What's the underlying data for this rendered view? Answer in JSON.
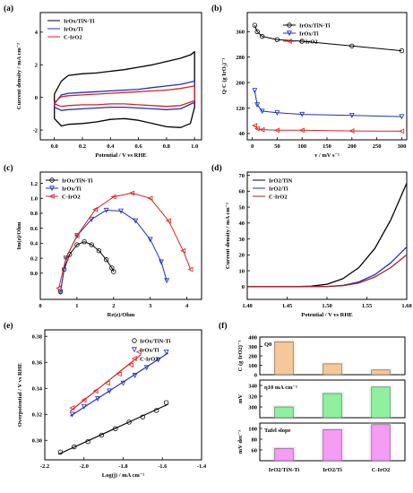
{
  "chart_data": [
    {
      "panel": "(a)",
      "type": "line",
      "subtype": "cyclic-voltammetry",
      "xlabel": "Potential / V vs RHE",
      "ylabel": "Current density / mA cm⁻²",
      "xlim": [
        -0.1,
        1.05
      ],
      "ylim": [
        -2.6,
        5.2
      ],
      "xticks": [
        0.0,
        0.2,
        0.4,
        0.6,
        0.8,
        1.0
      ],
      "yticks": [
        -2,
        0,
        2,
        4
      ],
      "legend_position": "top-left",
      "series": [
        {
          "name": "IrOx/TiN-Ti",
          "color": "#000000",
          "upper": {
            "x": [
              0.0,
              0.05,
              0.1,
              0.2,
              0.3,
              0.4,
              0.5,
              0.6,
              0.7,
              0.8,
              0.9,
              0.97,
              1.0
            ],
            "y": [
              0.2,
              1.0,
              1.35,
              1.45,
              1.5,
              1.6,
              1.7,
              1.85,
              2.0,
              2.2,
              2.4,
              2.6,
              2.8
            ]
          },
          "lower": {
            "x": [
              0.0,
              0.05,
              0.1,
              0.2,
              0.3,
              0.4,
              0.5,
              0.6,
              0.7,
              0.8,
              0.9,
              0.97,
              1.0
            ],
            "y": [
              -1.3,
              -1.75,
              -1.65,
              -1.6,
              -1.5,
              -1.35,
              -1.3,
              -1.4,
              -1.6,
              -1.8,
              -1.85,
              -1.6,
              -0.6
            ]
          }
        },
        {
          "name": "IrOx/Ti",
          "color": "#1f2fbf",
          "upper": {
            "x": [
              0.0,
              0.05,
              0.1,
              0.2,
              0.3,
              0.4,
              0.5,
              0.6,
              0.7,
              0.8,
              0.9,
              1.0
            ],
            "y": [
              -0.4,
              0.15,
              0.25,
              0.3,
              0.35,
              0.4,
              0.45,
              0.5,
              0.6,
              0.7,
              0.8,
              1.0
            ]
          },
          "lower": {
            "x": [
              0.0,
              0.05,
              0.1,
              0.2,
              0.3,
              0.4,
              0.5,
              0.6,
              0.7,
              0.8,
              0.9,
              1.0
            ],
            "y": [
              -0.6,
              -0.8,
              -0.75,
              -0.7,
              -0.65,
              -0.6,
              -0.6,
              -0.65,
              -0.7,
              -0.75,
              -0.7,
              -0.3
            ]
          }
        },
        {
          "name": "C-IrO2",
          "color": "#e02020",
          "upper": {
            "x": [
              0.0,
              0.05,
              0.1,
              0.2,
              0.3,
              0.4,
              0.5,
              0.6,
              0.7,
              0.8,
              0.9,
              1.0
            ],
            "y": [
              -0.3,
              0.05,
              0.1,
              0.15,
              0.2,
              0.25,
              0.3,
              0.35,
              0.4,
              0.45,
              0.55,
              0.7
            ]
          },
          "lower": {
            "x": [
              0.0,
              0.05,
              0.1,
              0.2,
              0.3,
              0.4,
              0.5,
              0.6,
              0.7,
              0.8,
              0.9,
              1.0
            ],
            "y": [
              -0.4,
              -0.55,
              -0.5,
              -0.45,
              -0.45,
              -0.4,
              -0.4,
              -0.45,
              -0.5,
              -0.55,
              -0.5,
              -0.2
            ]
          }
        }
      ]
    },
    {
      "panel": "(b)",
      "type": "line",
      "xlabel": "v / mV s⁻¹",
      "ylabel": "Q·C (g IrO₂)⁻¹",
      "xlim": [
        -10,
        310
      ],
      "ylim": [
        20,
        420
      ],
      "xticks": [
        0,
        50,
        100,
        150,
        200,
        250,
        300
      ],
      "yticks": [
        40,
        120,
        200,
        280,
        360
      ],
      "legend_position": "top-right",
      "series": [
        {
          "name": "IrOx/TiN-Ti",
          "color": "#000000",
          "marker": "circle",
          "x": [
            5,
            10,
            20,
            50,
            100,
            200,
            300
          ],
          "y": [
            380,
            360,
            345,
            335,
            330,
            315,
            300
          ]
        },
        {
          "name": "IrOx/Ti",
          "color": "#1f2fbf",
          "marker": "triangle-down",
          "x": [
            5,
            10,
            20,
            50,
            100,
            200,
            300
          ],
          "y": [
            175,
            130,
            110,
            105,
            100,
            97,
            93
          ]
        },
        {
          "name": "C-IrO2",
          "color": "#e02020",
          "marker": "triangle-left",
          "x": [
            5,
            10,
            20,
            50,
            100,
            200,
            300
          ],
          "y": [
            65,
            55,
            52,
            50,
            50,
            48,
            47
          ]
        }
      ]
    },
    {
      "panel": "(c)",
      "type": "scatter",
      "subtype": "nyquist",
      "xlabel": "Re(z)/Ohm",
      "ylabel": "Im(z)/Ohm",
      "xlim": [
        0,
        4.4
      ],
      "ylim": [
        -0.35,
        1.35
      ],
      "xticks": [
        0,
        1,
        2,
        3,
        4
      ],
      "yticks": [
        0.0,
        0.2,
        0.4,
        0.6,
        0.8,
        1.0,
        1.2
      ],
      "legend_position": "top-left",
      "series": [
        {
          "name": "IrOx/TiN-Ti",
          "color": "#000000",
          "marker": "circle",
          "x": [
            0.55,
            0.65,
            0.8,
            1.0,
            1.2,
            1.4,
            1.6,
            1.8,
            1.95,
            2.0
          ],
          "y": [
            -0.25,
            0.05,
            0.25,
            0.38,
            0.42,
            0.38,
            0.3,
            0.18,
            0.07,
            0.02
          ]
        },
        {
          "name": "IrOx/Ti",
          "color": "#1f2fbf",
          "marker": "triangle-down",
          "x": [
            0.55,
            0.7,
            1.0,
            1.4,
            1.8,
            2.2,
            2.6,
            3.0,
            3.3,
            3.45
          ],
          "y": [
            -0.25,
            0.2,
            0.5,
            0.72,
            0.84,
            0.83,
            0.7,
            0.45,
            0.15,
            -0.1
          ]
        },
        {
          "name": "C-IrO2",
          "color": "#e02020",
          "marker": "triangle-left",
          "x": [
            0.5,
            0.7,
            1.0,
            1.5,
            2.0,
            2.5,
            3.0,
            3.5,
            3.9,
            4.1
          ],
          "y": [
            -0.2,
            0.2,
            0.5,
            0.85,
            1.02,
            1.07,
            1.0,
            0.7,
            0.3,
            0.05
          ]
        }
      ]
    },
    {
      "panel": "(d)",
      "type": "line",
      "subtype": "polarization",
      "xlabel": "Potential / V vs RHE",
      "ylabel": "Current density / mA cm⁻²",
      "xlim": [
        1.4,
        1.6
      ],
      "ylim": [
        -8,
        72
      ],
      "xticks": [
        1.4,
        1.45,
        1.5,
        1.55,
        1.6
      ],
      "yticks": [
        0,
        10,
        20,
        30,
        40,
        50,
        60,
        70
      ],
      "legend_position": "top-left",
      "series": [
        {
          "name": "IrO2/TiN",
          "color": "#000000",
          "x": [
            1.4,
            1.46,
            1.48,
            1.5,
            1.52,
            1.54,
            1.56,
            1.58,
            1.6
          ],
          "y": [
            0,
            0,
            0.3,
            1.5,
            5,
            12,
            24,
            42,
            65
          ]
        },
        {
          "name": "IrO2/Ti",
          "color": "#1f2fbf",
          "x": [
            1.4,
            1.5,
            1.52,
            1.54,
            1.56,
            1.58,
            1.6
          ],
          "y": [
            0,
            0.1,
            0.8,
            3,
            7.5,
            15,
            25
          ]
        },
        {
          "name": "C-IrO2",
          "color": "#b02020",
          "x": [
            1.4,
            1.5,
            1.52,
            1.54,
            1.56,
            1.58,
            1.6
          ],
          "y": [
            0,
            0.1,
            0.6,
            2.3,
            6,
            12,
            20
          ]
        }
      ]
    },
    {
      "panel": "(e)",
      "type": "scatter",
      "subtype": "tafel",
      "xlabel": "Log(j) / mA cm⁻²",
      "ylabel": "Overpotential / V vs RHE",
      "xlim": [
        -2.2,
        -1.4
      ],
      "ylim": [
        0.285,
        0.385
      ],
      "xticks": [
        -2.2,
        -2.0,
        -1.8,
        -1.6,
        -1.4
      ],
      "yticks": [
        0.3,
        0.32,
        0.34,
        0.36,
        0.38
      ],
      "legend_position": "top-right",
      "series": [
        {
          "name": "IrOx/TiN-Ti",
          "color": "#000000",
          "marker": "circle",
          "x": [
            -2.12,
            -2.05,
            -1.98,
            -1.91,
            -1.84,
            -1.77,
            -1.7,
            -1.63,
            -1.58
          ],
          "y": [
            0.291,
            0.295,
            0.299,
            0.304,
            0.309,
            0.314,
            0.318,
            0.323,
            0.329
          ]
        },
        {
          "name": "IrOx/Ti",
          "color": "#1f2fbf",
          "marker": "triangle-down",
          "x": [
            -2.06,
            -2.0,
            -1.93,
            -1.87,
            -1.8,
            -1.74,
            -1.68,
            -1.62,
            -1.58
          ],
          "y": [
            0.32,
            0.326,
            0.332,
            0.338,
            0.344,
            0.35,
            0.356,
            0.362,
            0.368
          ]
        },
        {
          "name": "C-IrO2",
          "color": "#e02020",
          "marker": "triangle-left",
          "x": [
            -2.06,
            -2.0,
            -1.94,
            -1.88,
            -1.82,
            -1.76,
            -1.72
          ],
          "y": [
            0.325,
            0.331,
            0.338,
            0.344,
            0.351,
            0.358,
            0.368
          ]
        }
      ]
    },
    {
      "panel": "(f)",
      "type": "bar",
      "categories": [
        "IrO2/TiN-Ti",
        "IrO2/Ti",
        "C-IrO2"
      ],
      "bar_colors": [
        "#f5c79a",
        "#8ff0a0",
        "#f59cf5"
      ],
      "subplots": [
        {
          "name": "Q0",
          "ylabel": "C (g IrO2)⁻¹",
          "ylim": [
            0,
            400
          ],
          "yticks": [
            0,
            100,
            200,
            300,
            400
          ],
          "values": [
            350,
            115,
            50
          ],
          "color": "#f5c79a"
        },
        {
          "name": "η10 mA cm⁻²",
          "ylabel": "mV",
          "ylim": [
            280,
            350
          ],
          "yticks": [
            300,
            320,
            340
          ],
          "values": [
            300,
            325,
            337
          ],
          "color": "#8ff0a0"
        },
        {
          "name": "Tafel slope",
          "ylabel": "mV dec⁻¹",
          "ylim": [
            40,
            110
          ],
          "yticks": [
            60,
            80,
            100
          ],
          "values": [
            63,
            98,
            107
          ],
          "color": "#f59cf5"
        }
      ]
    }
  ]
}
